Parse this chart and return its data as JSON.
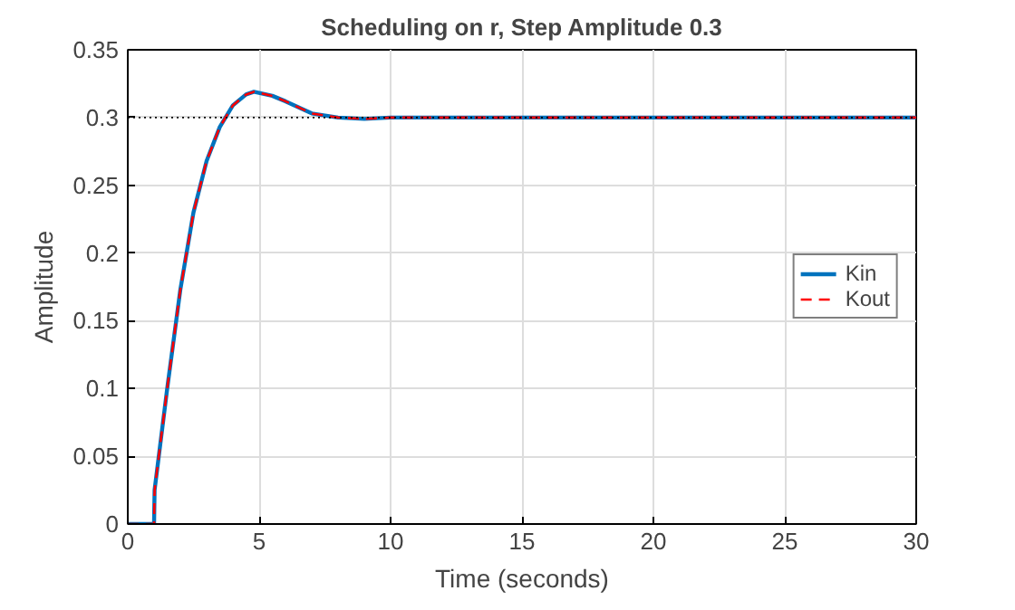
{
  "chart_data": {
    "type": "line",
    "title": "Scheduling on r, Step Amplitude 0.3",
    "xlabel": "Time (seconds)",
    "ylabel": "Amplitude",
    "x": [
      0,
      1,
      1.02,
      1.5,
      2,
      2.5,
      3,
      3.5,
      4,
      4.5,
      4.8,
      5.5,
      6,
      7,
      8,
      9,
      10,
      12,
      30
    ],
    "series": [
      {
        "name": "Kin",
        "color": "#0072bd",
        "line_style": "solid",
        "values": [
          0,
          0,
          0.025,
          0.1,
          0.173,
          0.23,
          0.268,
          0.293,
          0.309,
          0.317,
          0.319,
          0.316,
          0.312,
          0.303,
          0.3,
          0.299,
          0.3,
          0.3,
          0.3
        ]
      },
      {
        "name": "Kout",
        "color": "#ff0000",
        "line_style": "dashed",
        "values": [
          0,
          0,
          0.025,
          0.1,
          0.173,
          0.23,
          0.268,
          0.293,
          0.309,
          0.317,
          0.319,
          0.316,
          0.312,
          0.303,
          0.3,
          0.299,
          0.3,
          0.3,
          0.3
        ]
      }
    ],
    "xlim": [
      0,
      30
    ],
    "ylim": [
      0,
      0.35
    ],
    "xticks": [
      0,
      5,
      10,
      15,
      20,
      25,
      30
    ],
    "yticks": [
      0,
      0.05,
      0.1,
      0.15,
      0.2,
      0.25,
      0.3,
      0.35
    ],
    "ref_lines": [
      {
        "axis": "y",
        "value": 0.3,
        "color": "#000000",
        "line_style": "dotted"
      }
    ],
    "grid": true,
    "legend": "right"
  }
}
